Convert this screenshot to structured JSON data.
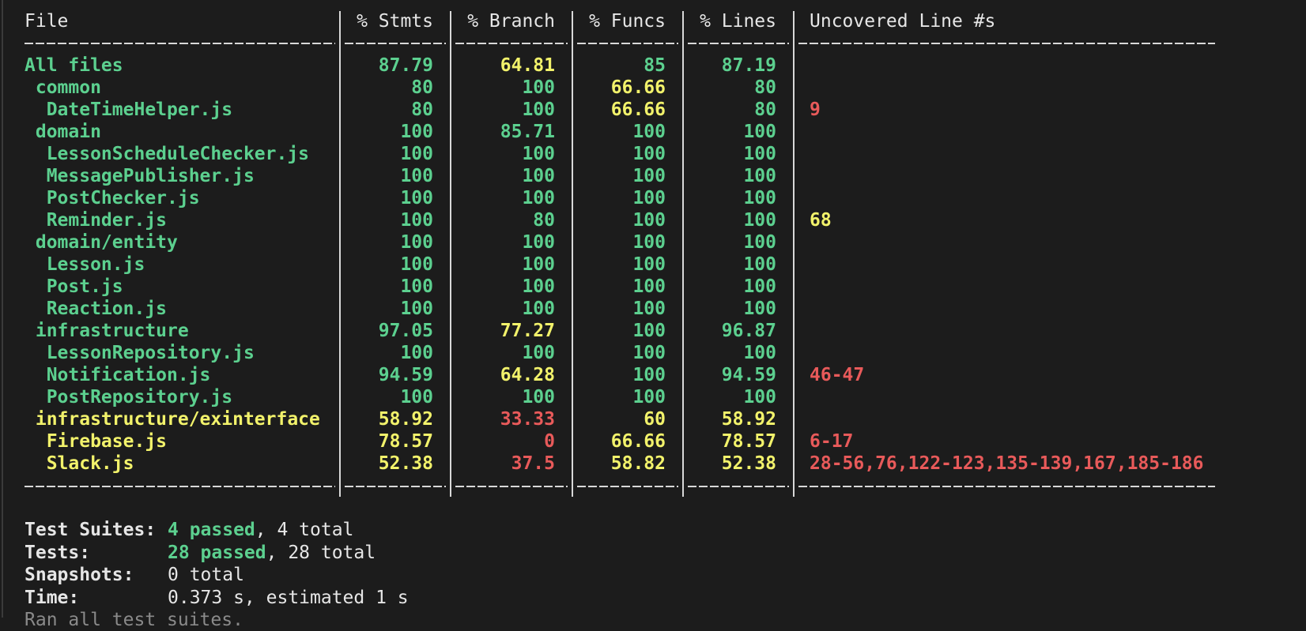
{
  "palette": {
    "green": "#5cd08f",
    "yellow": "#f2f26b",
    "red": "#e85a5a",
    "white": "#e6e6e6",
    "gray": "#8a8a8a"
  },
  "table": {
    "header": [
      "File",
      "% Stmts",
      "% Branch",
      "% Funcs",
      "% Lines",
      "Uncovered Line #s"
    ],
    "rows": [
      {
        "cells": [
          "All files",
          "87.79",
          "64.81",
          "85",
          "87.19"
        ],
        "colors": [
          "green",
          "green",
          "yellow",
          "green",
          "green"
        ]
      },
      {
        "cells": [
          " common",
          "80",
          "100",
          "66.66",
          "80"
        ],
        "colors": [
          "green",
          "green",
          "green",
          "yellow",
          "green"
        ]
      },
      {
        "cells": [
          "  DateTimeHelper.js",
          "80",
          "100",
          "66.66",
          "80",
          "9"
        ],
        "colors": [
          "green",
          "green",
          "green",
          "yellow",
          "green",
          "red"
        ]
      },
      {
        "cells": [
          " domain",
          "100",
          "85.71",
          "100",
          "100"
        ],
        "colors": [
          "green",
          "green",
          "green",
          "green",
          "green"
        ]
      },
      {
        "cells": [
          "  LessonScheduleChecker.js",
          "100",
          "100",
          "100",
          "100"
        ],
        "colors": [
          "green",
          "green",
          "green",
          "green",
          "green"
        ]
      },
      {
        "cells": [
          "  MessagePublisher.js",
          "100",
          "100",
          "100",
          "100"
        ],
        "colors": [
          "green",
          "green",
          "green",
          "green",
          "green"
        ]
      },
      {
        "cells": [
          "  PostChecker.js",
          "100",
          "100",
          "100",
          "100"
        ],
        "colors": [
          "green",
          "green",
          "green",
          "green",
          "green"
        ]
      },
      {
        "cells": [
          "  Reminder.js",
          "100",
          "80",
          "100",
          "100",
          "68"
        ],
        "colors": [
          "green",
          "green",
          "green",
          "green",
          "green",
          "yellow"
        ]
      },
      {
        "cells": [
          " domain/entity",
          "100",
          "100",
          "100",
          "100"
        ],
        "colors": [
          "green",
          "green",
          "green",
          "green",
          "green"
        ]
      },
      {
        "cells": [
          "  Lesson.js",
          "100",
          "100",
          "100",
          "100"
        ],
        "colors": [
          "green",
          "green",
          "green",
          "green",
          "green"
        ]
      },
      {
        "cells": [
          "  Post.js",
          "100",
          "100",
          "100",
          "100"
        ],
        "colors": [
          "green",
          "green",
          "green",
          "green",
          "green"
        ]
      },
      {
        "cells": [
          "  Reaction.js",
          "100",
          "100",
          "100",
          "100"
        ],
        "colors": [
          "green",
          "green",
          "green",
          "green",
          "green"
        ]
      },
      {
        "cells": [
          " infrastructure",
          "97.05",
          "77.27",
          "100",
          "96.87"
        ],
        "colors": [
          "green",
          "green",
          "yellow",
          "green",
          "green"
        ]
      },
      {
        "cells": [
          "  LessonRepository.js",
          "100",
          "100",
          "100",
          "100"
        ],
        "colors": [
          "green",
          "green",
          "green",
          "green",
          "green"
        ]
      },
      {
        "cells": [
          "  Notification.js",
          "94.59",
          "64.28",
          "100",
          "94.59",
          "46-47"
        ],
        "colors": [
          "green",
          "green",
          "yellow",
          "green",
          "green",
          "red"
        ]
      },
      {
        "cells": [
          "  PostRepository.js",
          "100",
          "100",
          "100",
          "100"
        ],
        "colors": [
          "green",
          "green",
          "green",
          "green",
          "green"
        ]
      },
      {
        "cells": [
          " infrastructure/exinterface",
          "58.92",
          "33.33",
          "60",
          "58.92"
        ],
        "colors": [
          "yellow",
          "yellow",
          "red",
          "yellow",
          "yellow"
        ]
      },
      {
        "cells": [
          "  Firebase.js",
          "78.57",
          "0",
          "66.66",
          "78.57",
          "6-17"
        ],
        "colors": [
          "yellow",
          "yellow",
          "red",
          "yellow",
          "yellow",
          "red"
        ]
      },
      {
        "cells": [
          "  Slack.js",
          "52.38",
          "37.5",
          "58.82",
          "52.38",
          "28-56,76,122-123,135-139,167,185-186"
        ],
        "colors": [
          "yellow",
          "yellow",
          "red",
          "yellow",
          "yellow",
          "red"
        ]
      }
    ]
  },
  "summary": [
    {
      "label": "Test Suites:",
      "passed": "4 passed",
      "rest": ", 4 total"
    },
    {
      "label": "Tests:",
      "passed": "28 passed",
      "rest": ", 28 total"
    },
    {
      "label": "Snapshots:",
      "rest": "0 total"
    },
    {
      "label": "Time:",
      "rest": "0.373 s, estimated 1 s"
    }
  ],
  "footer": "Ran all test suites."
}
